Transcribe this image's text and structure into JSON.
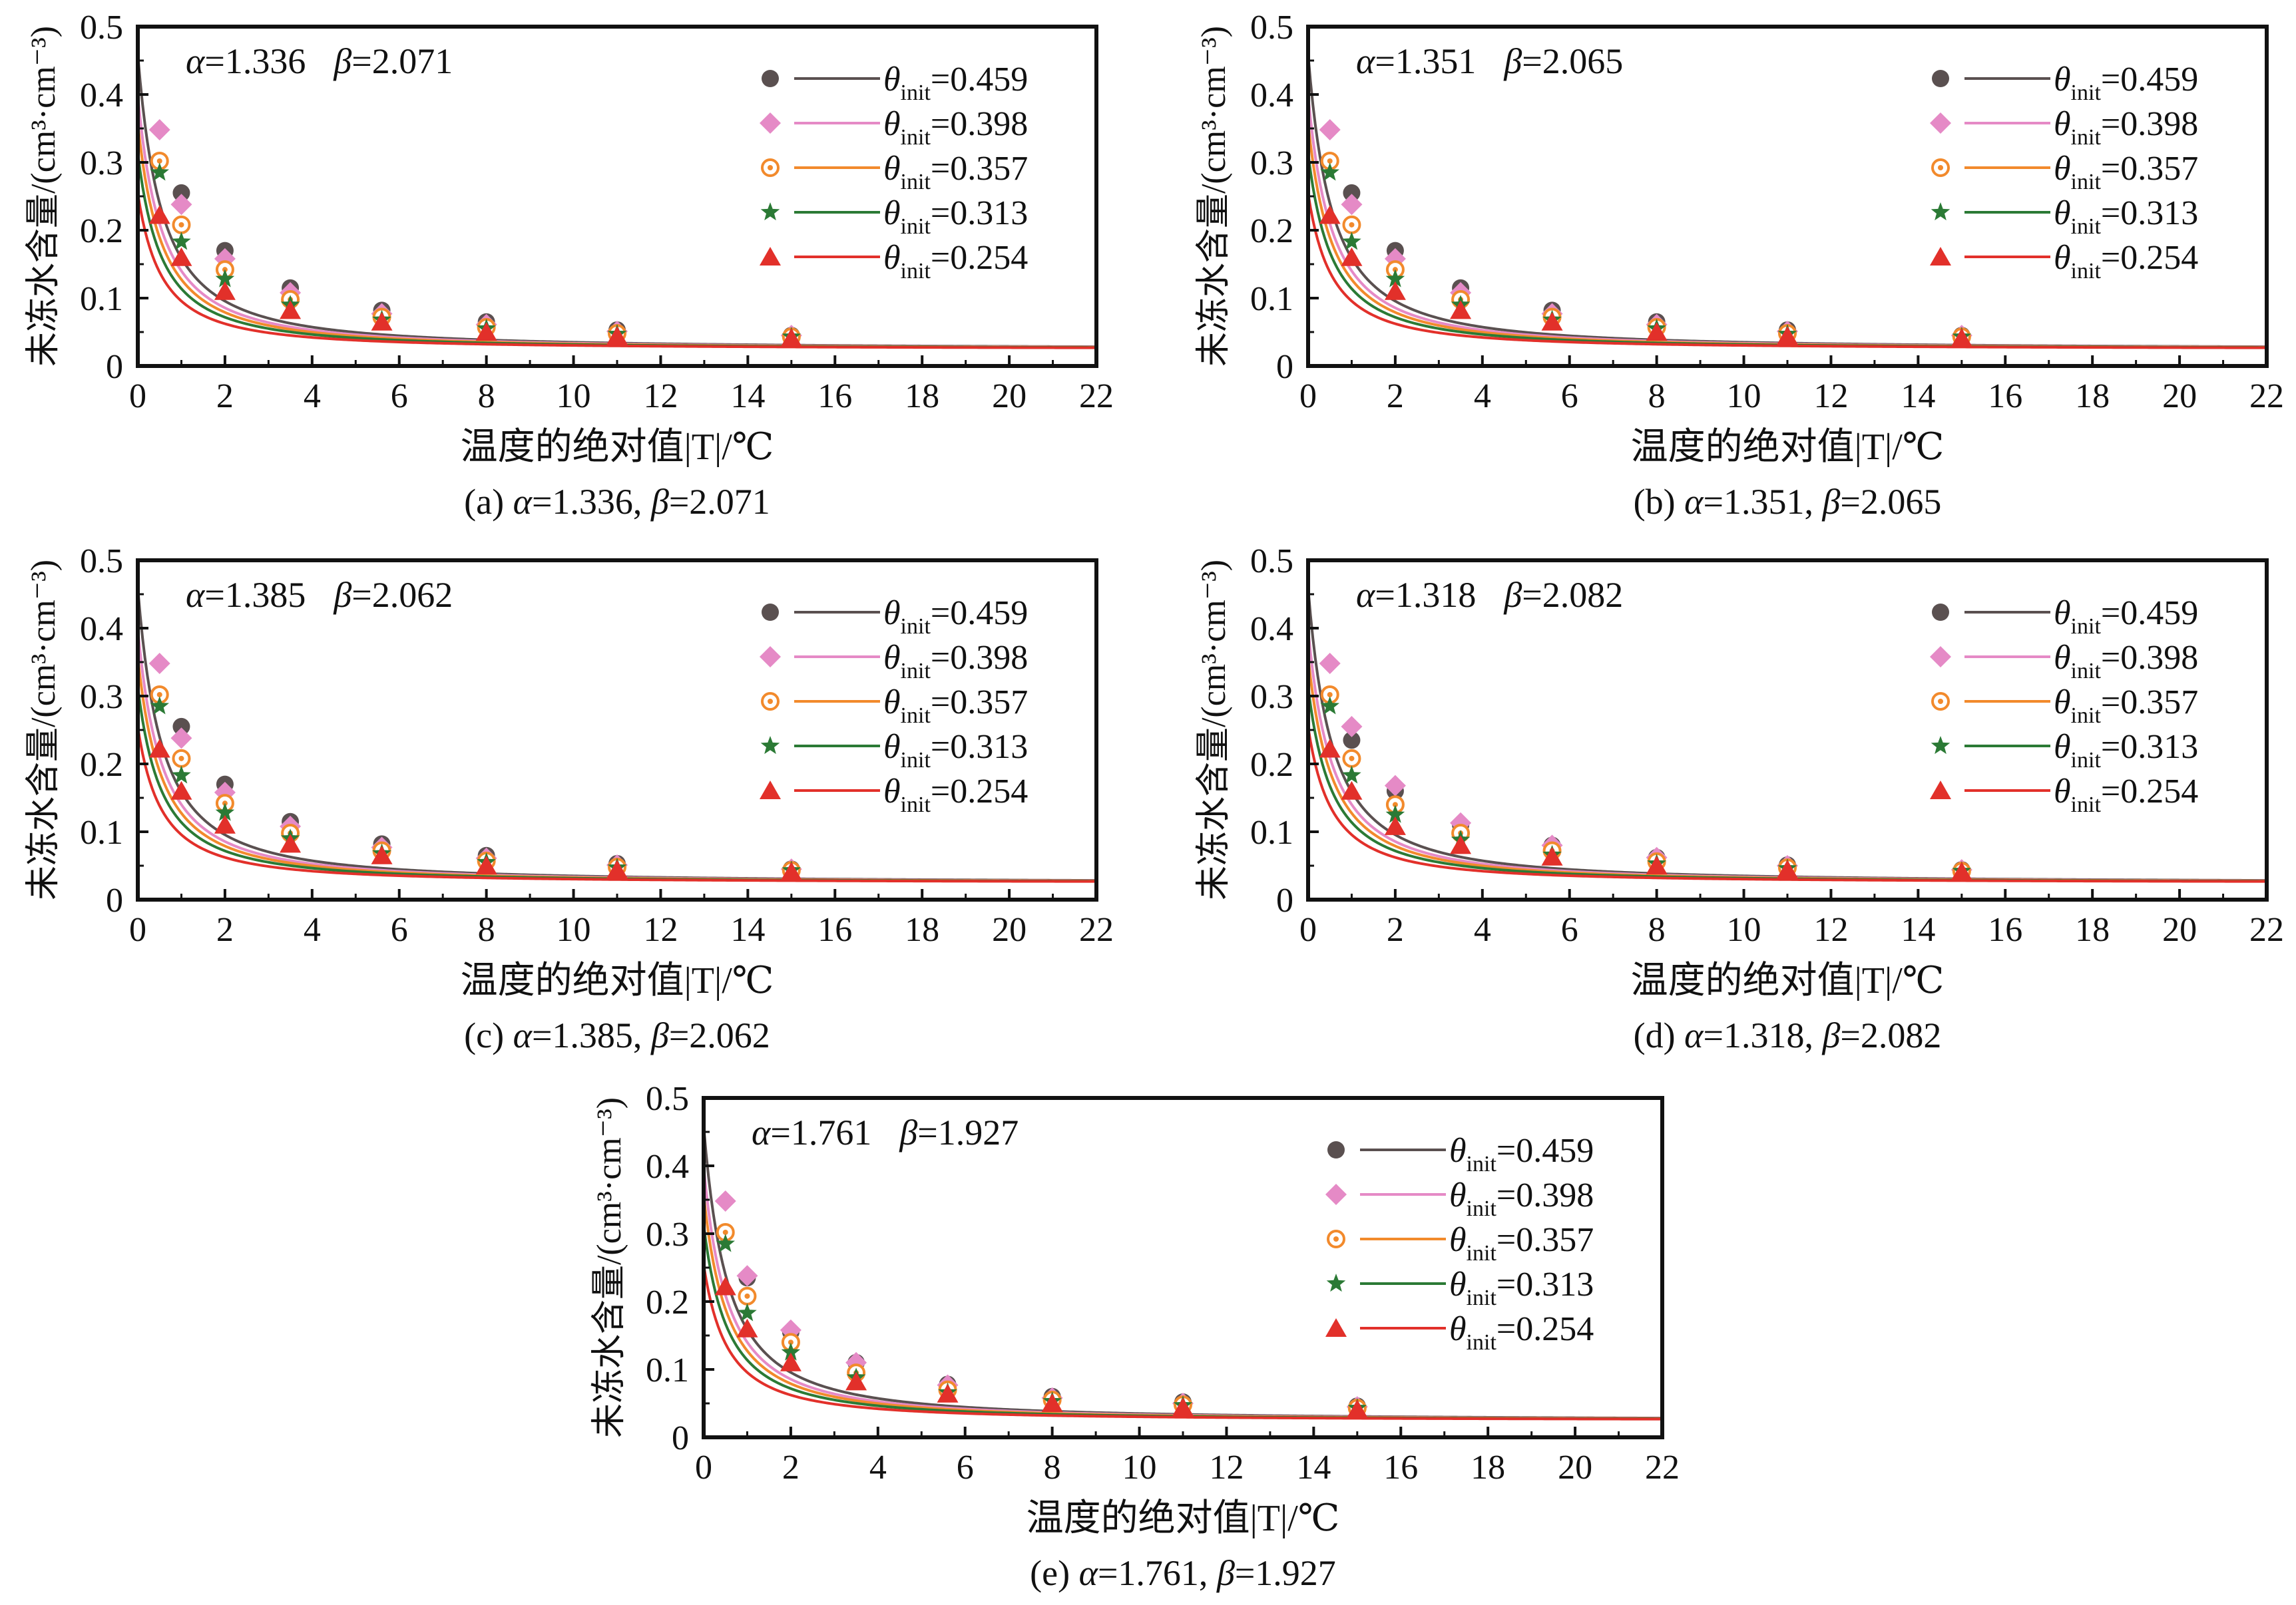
{
  "figure": {
    "xlabel": "温度的绝对值|T|/℃",
    "ylabel": "未冻水含量/(cm³·cm⁻³)",
    "legend_var_symbol": "θ",
    "legend_var_sub": "init",
    "series_colors": [
      "#5a5050",
      "#e58ac6",
      "#f28a2c",
      "#2b7a35",
      "#e2302a"
    ],
    "series_markers": [
      "circle",
      "diamond",
      "circle-dot",
      "star",
      "triangle"
    ],
    "legend_values": [
      "=0.459",
      "=0.398",
      "=0.357",
      "=0.313",
      "=0.254"
    ]
  },
  "chart_data": [
    {
      "panel": "a",
      "type": "line+scatter",
      "caption_prefix": "(a) ",
      "params": {
        "alpha": "1.336",
        "beta": "2.071"
      },
      "xlabel": "温度的绝对值|T|/℃",
      "ylabel": "未冻水含量/(cm³·cm⁻³)",
      "xlim": [
        0,
        22
      ],
      "ylim": [
        0,
        0.5
      ],
      "xticks": [
        0,
        2,
        4,
        6,
        8,
        10,
        12,
        14,
        16,
        18,
        20,
        22
      ],
      "yticks": [
        0,
        0.1,
        0.2,
        0.3,
        0.4,
        0.5
      ],
      "ytick_labels": [
        "0",
        "0.1",
        "0.2",
        "0.3",
        "0.4",
        "0.5"
      ],
      "legend_position": "top-right",
      "series": [
        {
          "name": "θinit=0.459",
          "init": 0.459,
          "x": [
            1.0,
            2.0,
            3.5,
            5.6,
            8.0,
            11.0,
            15.0
          ],
          "y": [
            0.255,
            0.17,
            0.115,
            0.082,
            0.065,
            0.053,
            0.045
          ]
        },
        {
          "name": "θinit=0.398",
          "init": 0.398,
          "x": [
            0.5,
            1.0,
            2.0,
            3.5,
            5.6,
            8.0,
            11.0,
            15.0
          ],
          "y": [
            0.348,
            0.238,
            0.158,
            0.108,
            0.077,
            0.061,
            0.051,
            0.045
          ]
        },
        {
          "name": "θinit=0.357",
          "init": 0.357,
          "x": [
            0.5,
            1.0,
            2.0,
            3.5,
            5.6,
            8.0,
            11.0,
            15.0
          ],
          "y": [
            0.302,
            0.208,
            0.142,
            0.098,
            0.072,
            0.057,
            0.048,
            0.043
          ]
        },
        {
          "name": "θinit=0.313",
          "init": 0.313,
          "x": [
            0.5,
            1.0,
            2.0,
            3.5,
            5.6,
            8.0,
            11.0,
            15.0
          ],
          "y": [
            0.285,
            0.183,
            0.128,
            0.09,
            0.068,
            0.055,
            0.047,
            0.043
          ]
        },
        {
          "name": "θinit=0.254",
          "init": 0.254,
          "x": [
            0.5,
            1.0,
            2.0,
            3.5,
            5.6,
            8.0,
            11.0,
            15.0
          ],
          "y": [
            0.222,
            0.16,
            0.11,
            0.082,
            0.065,
            0.05,
            0.044,
            0.041
          ]
        }
      ]
    },
    {
      "panel": "b",
      "type": "line+scatter",
      "caption_prefix": "(b) ",
      "params": {
        "alpha": "1.351",
        "beta": "2.065"
      },
      "xlabel": "温度的绝对值|T|/℃",
      "ylabel": "未冻水含量/(cm³·cm⁻³)",
      "xlim": [
        0,
        22
      ],
      "ylim": [
        0,
        0.5
      ],
      "xticks": [
        0,
        2,
        4,
        6,
        8,
        10,
        12,
        14,
        16,
        18,
        20,
        22
      ],
      "yticks": [
        0,
        0.1,
        0.2,
        0.3,
        0.4,
        0.5
      ],
      "ytick_labels": [
        "0",
        "0.1",
        "0.2",
        "0.3",
        "0.4",
        "0.5"
      ],
      "legend_position": "top-right",
      "series": [
        {
          "name": "θinit=0.459",
          "init": 0.459,
          "x": [
            1.0,
            2.0,
            3.5,
            5.6,
            8.0,
            11.0,
            15.0
          ],
          "y": [
            0.255,
            0.17,
            0.115,
            0.082,
            0.065,
            0.053,
            0.045
          ]
        },
        {
          "name": "θinit=0.398",
          "init": 0.398,
          "x": [
            0.5,
            1.0,
            2.0,
            3.5,
            5.6,
            8.0,
            11.0,
            15.0
          ],
          "y": [
            0.348,
            0.238,
            0.158,
            0.108,
            0.077,
            0.061,
            0.051,
            0.045
          ]
        },
        {
          "name": "θinit=0.357",
          "init": 0.357,
          "x": [
            0.5,
            1.0,
            2.0,
            3.5,
            5.6,
            8.0,
            11.0,
            15.0
          ],
          "y": [
            0.302,
            0.208,
            0.142,
            0.098,
            0.072,
            0.057,
            0.048,
            0.043
          ]
        },
        {
          "name": "θinit=0.313",
          "init": 0.313,
          "x": [
            0.5,
            1.0,
            2.0,
            3.5,
            5.6,
            8.0,
            11.0,
            15.0
          ],
          "y": [
            0.285,
            0.183,
            0.128,
            0.09,
            0.068,
            0.055,
            0.047,
            0.043
          ]
        },
        {
          "name": "θinit=0.254",
          "init": 0.254,
          "x": [
            0.5,
            1.0,
            2.0,
            3.5,
            5.6,
            8.0,
            11.0,
            15.0
          ],
          "y": [
            0.222,
            0.16,
            0.11,
            0.082,
            0.065,
            0.05,
            0.044,
            0.041
          ]
        }
      ]
    },
    {
      "panel": "c",
      "type": "line+scatter",
      "caption_prefix": "(c) ",
      "params": {
        "alpha": "1.385",
        "beta": "2.062"
      },
      "xlabel": "温度的绝对值|T|/℃",
      "ylabel": "未冻水含量/(cm³·cm⁻³)",
      "xlim": [
        0,
        22
      ],
      "ylim": [
        0,
        0.5
      ],
      "xticks": [
        0,
        2,
        4,
        6,
        8,
        10,
        12,
        14,
        16,
        18,
        20,
        22
      ],
      "yticks": [
        0,
        0.1,
        0.2,
        0.3,
        0.4,
        0.5
      ],
      "ytick_labels": [
        "0",
        "0.1",
        "0.2",
        "0.3",
        "0.4",
        "0.5"
      ],
      "legend_position": "top-right",
      "series": [
        {
          "name": "θinit=0.459",
          "init": 0.459,
          "x": [
            1.0,
            2.0,
            3.5,
            5.6,
            8.0,
            11.0,
            15.0
          ],
          "y": [
            0.255,
            0.17,
            0.115,
            0.082,
            0.065,
            0.053,
            0.045
          ]
        },
        {
          "name": "θinit=0.398",
          "init": 0.398,
          "x": [
            0.5,
            1.0,
            2.0,
            3.5,
            5.6,
            8.0,
            11.0,
            15.0
          ],
          "y": [
            0.348,
            0.238,
            0.158,
            0.108,
            0.077,
            0.061,
            0.051,
            0.045
          ]
        },
        {
          "name": "θinit=0.357",
          "init": 0.357,
          "x": [
            0.5,
            1.0,
            2.0,
            3.5,
            5.6,
            8.0,
            11.0,
            15.0
          ],
          "y": [
            0.302,
            0.208,
            0.142,
            0.098,
            0.072,
            0.057,
            0.048,
            0.043
          ]
        },
        {
          "name": "θinit=0.313",
          "init": 0.313,
          "x": [
            0.5,
            1.0,
            2.0,
            3.5,
            5.6,
            8.0,
            11.0,
            15.0
          ],
          "y": [
            0.285,
            0.183,
            0.128,
            0.09,
            0.068,
            0.055,
            0.047,
            0.043
          ]
        },
        {
          "name": "θinit=0.254",
          "init": 0.254,
          "x": [
            0.5,
            1.0,
            2.0,
            3.5,
            5.6,
            8.0,
            11.0,
            15.0
          ],
          "y": [
            0.222,
            0.16,
            0.11,
            0.082,
            0.065,
            0.05,
            0.044,
            0.041
          ]
        }
      ]
    },
    {
      "panel": "d",
      "type": "line+scatter",
      "caption_prefix": "(d) ",
      "params": {
        "alpha": "1.318",
        "beta": "2.082"
      },
      "xlabel": "温度的绝对值|T|/℃",
      "ylabel": "未冻水含量/(cm³·cm⁻³)",
      "xlim": [
        0,
        22
      ],
      "ylim": [
        0,
        0.5
      ],
      "xticks": [
        0,
        2,
        4,
        6,
        8,
        10,
        12,
        14,
        16,
        18,
        20,
        22
      ],
      "yticks": [
        0,
        0.1,
        0.2,
        0.3,
        0.4,
        0.5
      ],
      "ytick_labels": [
        "0",
        "0.1",
        "0.2",
        "0.3",
        "0.4",
        "0.5"
      ],
      "legend_position": "top-right",
      "series": [
        {
          "name": "θinit=0.459",
          "init": 0.459,
          "x": [
            1.0,
            2.0,
            3.5,
            5.6,
            8.0,
            11.0,
            15.0
          ],
          "y": [
            0.235,
            0.16,
            0.11,
            0.08,
            0.062,
            0.051,
            0.044
          ]
        },
        {
          "name": "θinit=0.398",
          "init": 0.398,
          "x": [
            0.5,
            1.0,
            2.0,
            3.5,
            5.6,
            8.0,
            11.0,
            15.0
          ],
          "y": [
            0.348,
            0.255,
            0.168,
            0.113,
            0.08,
            0.062,
            0.05,
            0.044
          ]
        },
        {
          "name": "θinit=0.357",
          "init": 0.357,
          "x": [
            0.5,
            1.0,
            2.0,
            3.5,
            5.6,
            8.0,
            11.0,
            15.0
          ],
          "y": [
            0.302,
            0.208,
            0.14,
            0.098,
            0.072,
            0.056,
            0.047,
            0.042
          ]
        },
        {
          "name": "θinit=0.313",
          "init": 0.313,
          "x": [
            0.5,
            1.0,
            2.0,
            3.5,
            5.6,
            8.0,
            11.0,
            15.0
          ],
          "y": [
            0.285,
            0.183,
            0.125,
            0.088,
            0.066,
            0.053,
            0.046,
            0.042
          ]
        },
        {
          "name": "θinit=0.254",
          "init": 0.254,
          "x": [
            0.5,
            1.0,
            2.0,
            3.5,
            5.6,
            8.0,
            11.0,
            15.0
          ],
          "y": [
            0.222,
            0.16,
            0.108,
            0.08,
            0.063,
            0.05,
            0.044,
            0.041
          ]
        }
      ]
    },
    {
      "panel": "e",
      "type": "line+scatter",
      "caption_prefix": "(e) ",
      "params": {
        "alpha": "1.761",
        "beta": "1.927"
      },
      "xlabel": "温度的绝对值|T|/℃",
      "ylabel": "未冻水含量/(cm³·cm⁻³)",
      "xlim": [
        0,
        22
      ],
      "ylim": [
        0,
        0.5
      ],
      "xticks": [
        0,
        2,
        4,
        6,
        8,
        10,
        12,
        14,
        16,
        18,
        20,
        22
      ],
      "yticks": [
        0,
        0.1,
        0.2,
        0.3,
        0.4,
        0.5
      ],
      "ytick_labels": [
        "0",
        "0.1",
        "0.2",
        "0.3",
        "0.4",
        "0.5"
      ],
      "legend_position": "top-right",
      "series": [
        {
          "name": "θinit=0.459",
          "init": 0.459,
          "x": [
            1.0,
            2.0,
            3.5,
            5.6,
            8.0,
            11.0,
            15.0
          ],
          "y": [
            0.235,
            0.155,
            0.11,
            0.078,
            0.06,
            0.052,
            0.046
          ]
        },
        {
          "name": "θinit=0.398",
          "init": 0.398,
          "x": [
            0.5,
            1.0,
            2.0,
            3.5,
            5.6,
            8.0,
            11.0,
            15.0
          ],
          "y": [
            0.348,
            0.238,
            0.158,
            0.11,
            0.077,
            0.058,
            0.05,
            0.045
          ]
        },
        {
          "name": "θinit=0.357",
          "init": 0.357,
          "x": [
            0.5,
            1.0,
            2.0,
            3.5,
            5.6,
            8.0,
            11.0,
            15.0
          ],
          "y": [
            0.302,
            0.208,
            0.14,
            0.095,
            0.07,
            0.055,
            0.048,
            0.043
          ]
        },
        {
          "name": "θinit=0.313",
          "init": 0.313,
          "x": [
            0.5,
            1.0,
            2.0,
            3.5,
            5.6,
            8.0,
            11.0,
            15.0
          ],
          "y": [
            0.285,
            0.183,
            0.125,
            0.088,
            0.066,
            0.053,
            0.047,
            0.043
          ]
        },
        {
          "name": "θinit=0.254",
          "init": 0.254,
          "x": [
            0.5,
            1.0,
            2.0,
            3.5,
            5.6,
            8.0,
            11.0,
            15.0
          ],
          "y": [
            0.222,
            0.16,
            0.11,
            0.082,
            0.064,
            0.05,
            0.044,
            0.041
          ]
        }
      ]
    }
  ]
}
